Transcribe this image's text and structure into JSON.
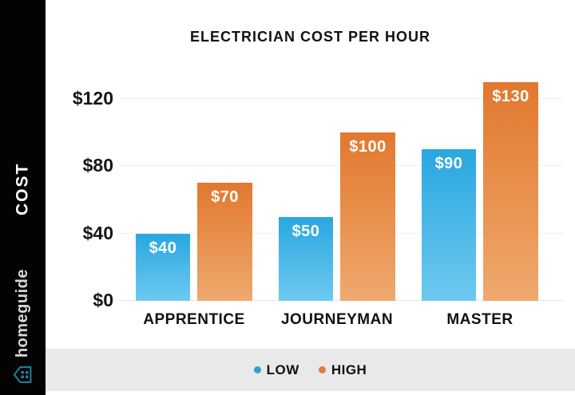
{
  "sidebar": {
    "cost_label": "COST",
    "brand_name": "homeguide",
    "brand_icon_color": "#1d7f9f",
    "background": "#030303"
  },
  "chart_data": {
    "type": "bar",
    "title": "ELECTRICIAN COST PER HOUR",
    "categories": [
      "APPRENTICE",
      "JOURNEYMAN",
      "MASTER"
    ],
    "series": [
      {
        "name": "LOW",
        "values": [
          40,
          50,
          90
        ],
        "labels": [
          "$40",
          "$50",
          "$90"
        ],
        "color_top": "#29a7e0",
        "color_bottom": "#6ec9f0"
      },
      {
        "name": "HIGH",
        "values": [
          70,
          100,
          130
        ],
        "labels": [
          "$70",
          "$100",
          "$130"
        ],
        "color_top": "#e2782e",
        "color_bottom": "#efa96e"
      }
    ],
    "yticks": [
      {
        "value": 0,
        "label": "$0"
      },
      {
        "value": 40,
        "label": "$40"
      },
      {
        "value": 80,
        "label": "$80"
      },
      {
        "value": 120,
        "label": "$120"
      }
    ],
    "ylim": [
      0,
      136
    ],
    "grid": true,
    "ylabel": "COST",
    "legend_position": "bottom"
  },
  "legend": {
    "items": [
      {
        "label": "LOW",
        "color": "#2ba3d4"
      },
      {
        "label": "HIGH",
        "color": "#e07a3e"
      }
    ]
  }
}
